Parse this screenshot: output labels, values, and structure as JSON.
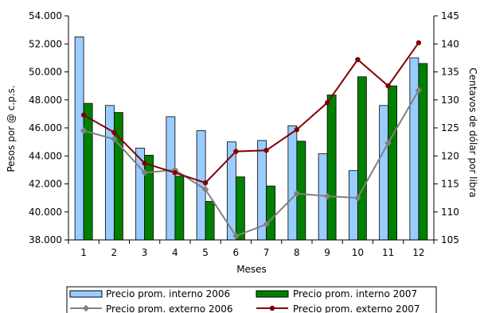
{
  "chart_data": {
    "type": "bar",
    "title": "",
    "xlabel": "Meses",
    "ylabel": "Pesos por @ c.p.s.",
    "y2label": "Centavos de dólar por libra",
    "categories": [
      "1",
      "2",
      "3",
      "4",
      "5",
      "6",
      "7",
      "8",
      "9",
      "10",
      "11",
      "12"
    ],
    "ylim": [
      38000,
      54000
    ],
    "yticks": [
      "38.000",
      "40.000",
      "42.000",
      "44.000",
      "46.000",
      "48.000",
      "50.000",
      "52.000",
      "54.000"
    ],
    "ytick_values": [
      38000,
      40000,
      42000,
      44000,
      46000,
      48000,
      50000,
      52000,
      54000
    ],
    "y2lim": [
      105,
      145
    ],
    "y2ticks": [
      "105",
      "110",
      "115",
      "120",
      "125",
      "130",
      "135",
      "140",
      "145"
    ],
    "y2tick_values": [
      105,
      110,
      115,
      120,
      125,
      130,
      135,
      140,
      145
    ],
    "grid": false,
    "legend_position": "bottom",
    "bar_series": [
      {
        "name": "Precio prom. interno 2006",
        "color": "#99ccff",
        "values": [
          52500,
          47600,
          44550,
          46800,
          45800,
          45000,
          45100,
          46150,
          44150,
          42950,
          47600,
          51000
        ]
      },
      {
        "name": "Precio prom. interno 2007",
        "color": "#008000",
        "values": [
          47750,
          47100,
          44050,
          42550,
          40750,
          42500,
          41850,
          45050,
          48350,
          49650,
          49000,
          50600
        ]
      }
    ],
    "line_series": [
      {
        "name": "Precio prom. externo 2006",
        "color": "#808080",
        "axis": "right",
        "values": [
          124.5,
          123.0,
          117.0,
          117.5,
          114.0,
          105.7,
          107.8,
          113.3,
          112.8,
          112.5,
          122.3,
          131.7
        ]
      },
      {
        "name": "Precio prom. externo 2007",
        "color": "#800000",
        "axis": "right",
        "values": [
          127.3,
          124.2,
          118.7,
          117.0,
          115.2,
          120.8,
          121.0,
          124.7,
          129.5,
          137.2,
          132.5,
          140.2
        ]
      }
    ]
  }
}
